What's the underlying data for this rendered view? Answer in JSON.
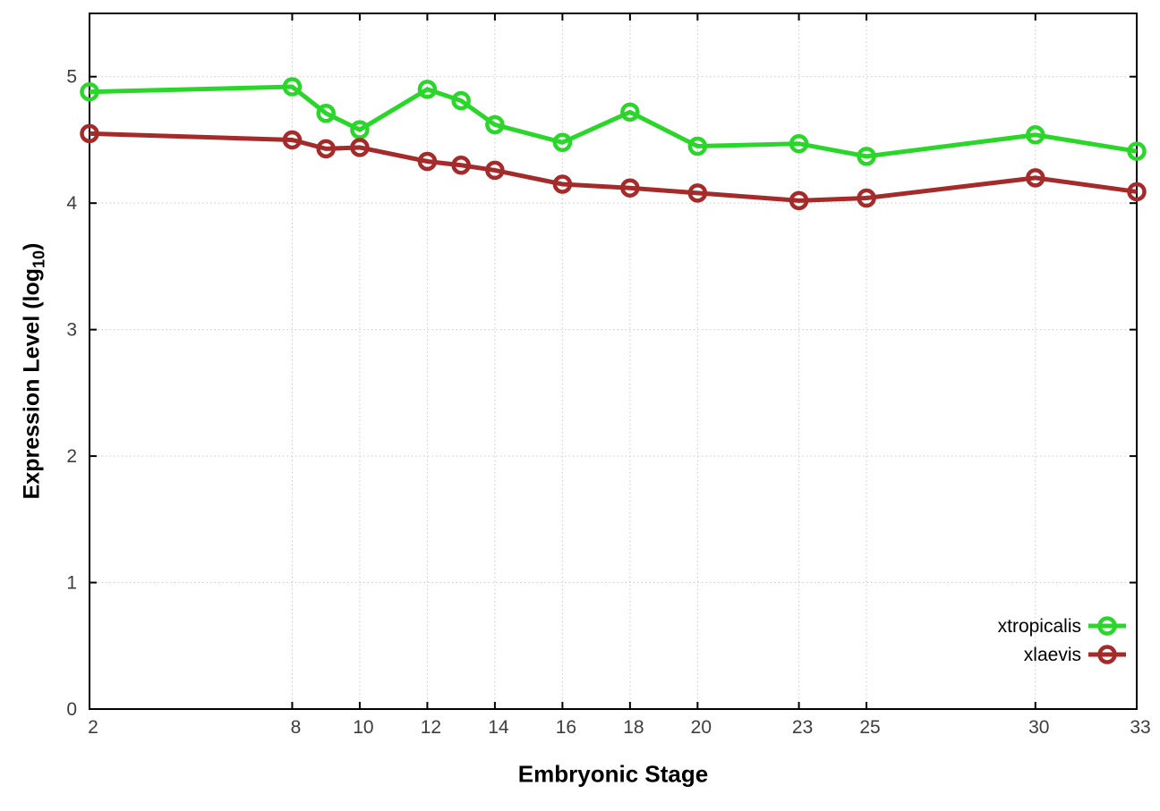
{
  "chart_data": {
    "type": "line",
    "title": "",
    "xlabel": "Embryonic Stage",
    "ylabel": "Expression Level (log10)",
    "ylabel_parts": {
      "main": "Expression Level (log",
      "sub": "10",
      "close": ")"
    },
    "x": [
      2,
      8,
      9,
      10,
      12,
      13,
      14,
      16,
      18,
      20,
      23,
      25,
      30,
      33
    ],
    "xticks": [
      2,
      8,
      10,
      12,
      14,
      16,
      18,
      20,
      23,
      25,
      30,
      33
    ],
    "yticks": [
      0,
      1,
      2,
      3,
      4,
      5
    ],
    "xlim": [
      2,
      33
    ],
    "ylim": [
      0,
      5.5
    ],
    "grid": true,
    "legend": {
      "position": "inside-bottom-right",
      "entries": [
        "xtropicalis",
        "xlaevis"
      ]
    },
    "series": [
      {
        "name": "xtropicalis",
        "color": "#2bd62b",
        "values": [
          4.88,
          4.92,
          4.71,
          4.58,
          4.9,
          4.81,
          4.62,
          4.48,
          4.72,
          4.45,
          4.47,
          4.37,
          4.54,
          4.41
        ]
      },
      {
        "name": "xlaevis",
        "color": "#a52a2a",
        "values": [
          4.55,
          4.5,
          4.43,
          4.44,
          4.33,
          4.3,
          4.26,
          4.15,
          4.12,
          4.08,
          4.02,
          4.04,
          4.2,
          4.09
        ]
      }
    ],
    "style": {
      "background": "#ffffff",
      "axis_color": "#000000",
      "tick_label_color": "#3d3d3d",
      "grid_color": "#c9c9c9",
      "legend_text_color": "#000000"
    }
  }
}
